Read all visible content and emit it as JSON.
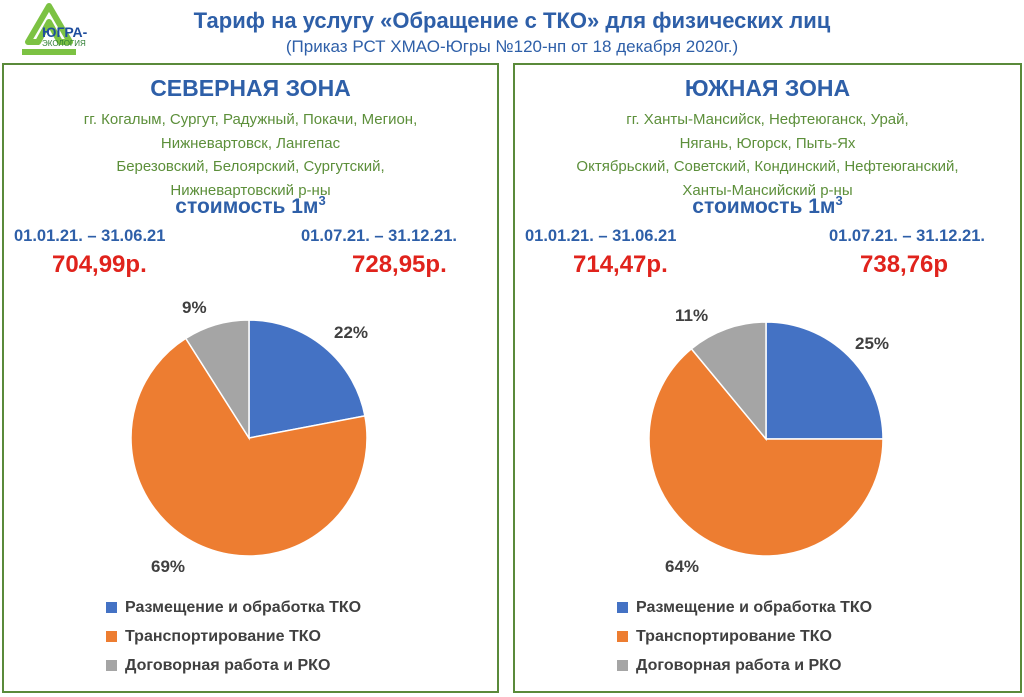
{
  "logo": {
    "text": "ЮГРА-",
    "subtext": "ЭКОЛОГИЯ"
  },
  "header": {
    "title": "Тариф на услугу «Обращение с ТКО» для физических лиц",
    "subtitle": "(Приказ РСТ ХМАО-Югры №120-нп от 18 декабря 2020г.)"
  },
  "colors": {
    "blue": "#4472c4",
    "orange": "#ed7d31",
    "gray": "#a5a5a5"
  },
  "north": {
    "title": "СЕВЕРНАЯ ЗОНА",
    "cities": [
      "гг. Когалым, Сургут, Радужный, Покачи, Мегион,",
      "Нижневартовск, Лангепас",
      "Березовский, Белоярский, Сургутский,",
      "Нижневартовский р-ны"
    ],
    "cost_label": "стоимость 1м",
    "cost_sup": "3",
    "period1": "01.01.21. –  31.06.21",
    "period2": "01.07.21. – 31.12.21.",
    "price1": "704,99р.",
    "price2": "728,95р."
  },
  "south": {
    "title": "ЮЖНАЯ ЗОНА",
    "cities": [
      "гг. Ханты-Мансийск, Нефтеюганск, Урай,",
      "Нягань, Югорск, Пыть-Ях",
      "Октябрьский, Советский, Кондинский, Нефтеюганский,",
      "Ханты-Мансийский р-ны"
    ],
    "cost_label": "стоимость 1м",
    "cost_sup": "3",
    "period1": "01.01.21. –  31.06.21",
    "period2": "01.07.21. – 31.12.21.",
    "price1": "714,47р.",
    "price2": "738,76р"
  },
  "chart_data": [
    {
      "type": "pie",
      "title": "СЕВЕРНАЯ ЗОНА",
      "categories": [
        "Размещение и обработка ТКО",
        "Транспортирование ТКО",
        "Договорная работа и РКО"
      ],
      "values": [
        22,
        69,
        9
      ],
      "labels": [
        "22%",
        "69%",
        "9%"
      ],
      "legend": "bottom"
    },
    {
      "type": "pie",
      "title": "ЮЖНАЯ ЗОНА",
      "categories": [
        "Размещение и обработка ТКО",
        "Транспортирование ТКО",
        "Договорная работа и РКО"
      ],
      "values": [
        25,
        64,
        11
      ],
      "labels": [
        "25%",
        "64%",
        "11%"
      ],
      "legend": "bottom"
    }
  ]
}
